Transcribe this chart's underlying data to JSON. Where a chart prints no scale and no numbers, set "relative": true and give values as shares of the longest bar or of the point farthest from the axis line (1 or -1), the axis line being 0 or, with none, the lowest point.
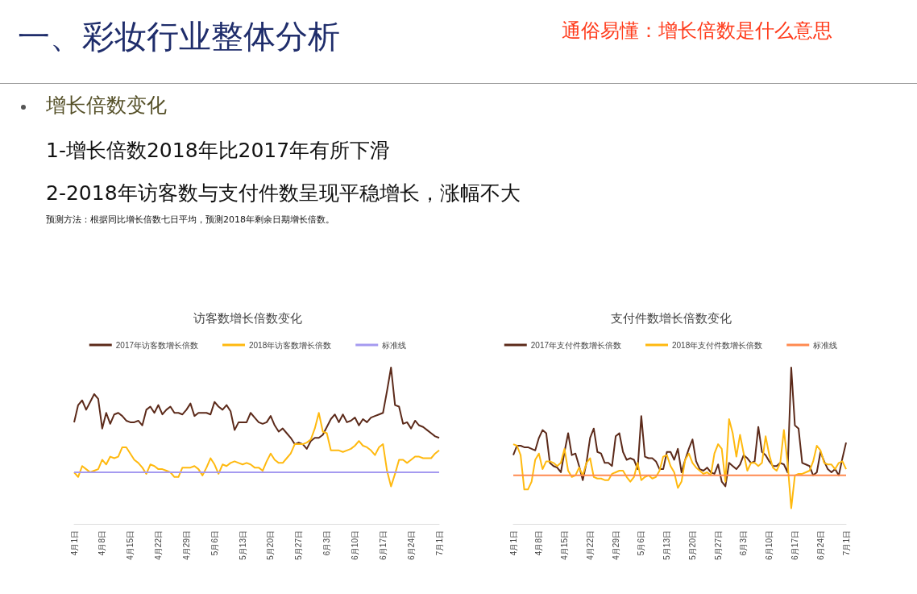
{
  "chart_data": [
    {
      "type": "other",
      "title": "一、彩妆行业整体分析",
      "annotations": [
        "通俗易懂：增长倍数是什么意思",
        "增长倍数变化",
        "1-增长倍数2018年比2017年有所下滑",
        "2-2018年访客数与支付件数呈现平稳增长，涨幅不大",
        "预测方法：根据同比增长倍数七日平均，预测2018年剩余日期增长倍数。"
      ]
    },
    {
      "type": "line",
      "title": "访客数增长倍数变化",
      "relative": true,
      "legend": "top",
      "marker": "none",
      "grid": false,
      "categories": [
        "4月1日",
        null,
        null,
        null,
        null,
        null,
        null,
        "4月8日",
        null,
        null,
        null,
        null,
        null,
        null,
        "4月15日",
        null,
        null,
        null,
        null,
        null,
        null,
        "4月22日",
        null,
        null,
        null,
        null,
        null,
        null,
        "4月29日",
        null,
        null,
        null,
        null,
        null,
        null,
        "5月6日",
        null,
        null,
        null,
        null,
        null,
        null,
        "5月13日",
        null,
        null,
        null,
        null,
        null,
        null,
        "5月20日",
        null,
        null,
        null,
        null,
        null,
        null,
        "5月27日",
        null,
        null,
        null,
        null,
        null,
        null,
        "6月3日",
        null,
        null,
        null,
        null,
        null,
        null,
        "6月10日",
        null,
        null,
        null,
        null,
        null,
        null,
        "6月17日",
        null,
        null,
        null,
        null,
        null,
        null,
        "6月24日",
        null,
        null,
        null,
        null,
        null,
        null,
        "7月1日"
      ],
      "series": [
        {
          "name": "2017年访客数增长倍数",
          "color": "#5c2a1a",
          "values": [
            0.65,
            0.76,
            0.79,
            0.73,
            0.78,
            0.83,
            0.8,
            0.61,
            0.71,
            0.64,
            0.7,
            0.71,
            0.69,
            0.66,
            0.65,
            0.65,
            0.66,
            0.63,
            0.73,
            0.75,
            0.71,
            0.76,
            0.7,
            0.73,
            0.75,
            0.71,
            0.71,
            0.7,
            0.73,
            0.77,
            0.69,
            0.71,
            0.71,
            0.71,
            0.7,
            0.78,
            0.75,
            0.73,
            0.76,
            0.72,
            0.6,
            0.65,
            0.65,
            0.65,
            0.71,
            0.68,
            0.65,
            0.64,
            0.65,
            0.69,
            0.63,
            0.59,
            0.61,
            0.58,
            0.55,
            0.51,
            0.52,
            0.51,
            0.48,
            0.53,
            0.55,
            0.55,
            0.57,
            0.62,
            0.67,
            0.7,
            0.65,
            0.7,
            0.65,
            0.66,
            0.68,
            0.63,
            0.67,
            0.65,
            0.68,
            0.69,
            0.7,
            0.71,
            0.85,
            1.0,
            0.76,
            0.75,
            0.64,
            0.65,
            0.61,
            0.66,
            0.63,
            0.62,
            0.6,
            0.58,
            0.56,
            0.55
          ]
        },
        {
          "name": "2018年访客数增长倍数",
          "color": "#ffb90f",
          "values": [
            0.33,
            0.3,
            0.37,
            0.35,
            0.33,
            0.34,
            0.35,
            0.41,
            0.38,
            0.43,
            0.42,
            0.43,
            0.49,
            0.49,
            0.45,
            0.41,
            0.39,
            0.36,
            0.32,
            0.38,
            0.37,
            0.35,
            0.35,
            0.34,
            0.33,
            0.3,
            0.3,
            0.36,
            0.36,
            0.36,
            0.37,
            0.35,
            0.31,
            0.36,
            0.42,
            0.38,
            0.32,
            0.38,
            0.37,
            0.39,
            0.4,
            0.39,
            0.38,
            0.39,
            0.38,
            0.36,
            0.36,
            0.34,
            0.4,
            0.45,
            0.41,
            0.39,
            0.39,
            0.42,
            0.45,
            0.51,
            0.51,
            0.51,
            0.52,
            0.54,
            0.61,
            0.71,
            0.59,
            0.58,
            0.47,
            0.47,
            0.47,
            0.46,
            0.47,
            0.48,
            0.5,
            0.53,
            0.5,
            0.49,
            0.47,
            0.44,
            0.49,
            0.51,
            0.34,
            0.24,
            0.32,
            0.41,
            0.41,
            0.39,
            0.41,
            0.43,
            0.43,
            0.42,
            0.42,
            0.42,
            0.45,
            0.47
          ]
        },
        {
          "name": "标准线",
          "color": "#a59af0",
          "values": [
            0.33,
            0.33,
            0.33,
            0.33,
            0.33,
            0.33,
            0.33,
            0.33,
            0.33,
            0.33,
            0.33,
            0.33,
            0.33,
            0.33,
            0.33,
            0.33,
            0.33,
            0.33,
            0.33,
            0.33,
            0.33,
            0.33,
            0.33,
            0.33,
            0.33,
            0.33,
            0.33,
            0.33,
            0.33,
            0.33,
            0.33,
            0.33,
            0.33,
            0.33,
            0.33,
            0.33,
            0.33,
            0.33,
            0.33,
            0.33,
            0.33,
            0.33,
            0.33,
            0.33,
            0.33,
            0.33,
            0.33,
            0.33,
            0.33,
            0.33,
            0.33,
            0.33,
            0.33,
            0.33,
            0.33,
            0.33,
            0.33,
            0.33,
            0.33,
            0.33,
            0.33,
            0.33,
            0.33,
            0.33,
            0.33,
            0.33,
            0.33,
            0.33,
            0.33,
            0.33,
            0.33,
            0.33,
            0.33,
            0.33,
            0.33,
            0.33,
            0.33,
            0.33,
            0.33,
            0.33,
            0.33,
            0.33,
            0.33,
            0.33,
            0.33,
            0.33,
            0.33,
            0.33,
            0.33,
            0.33,
            0.33,
            0.33
          ]
        }
      ]
    },
    {
      "type": "line",
      "title": "支付件数增长倍数变化",
      "relative": true,
      "legend": "top",
      "marker": "none",
      "grid": false,
      "categories": [
        "4月1日",
        null,
        null,
        null,
        null,
        null,
        null,
        "4月8日",
        null,
        null,
        null,
        null,
        null,
        null,
        "4月15日",
        null,
        null,
        null,
        null,
        null,
        null,
        "4月22日",
        null,
        null,
        null,
        null,
        null,
        null,
        "4月29日",
        null,
        null,
        null,
        null,
        null,
        null,
        "5月6日",
        null,
        null,
        null,
        null,
        null,
        null,
        "5月13日",
        null,
        null,
        null,
        null,
        null,
        null,
        "5月20日",
        null,
        null,
        null,
        null,
        null,
        null,
        "5月27日",
        null,
        null,
        null,
        null,
        null,
        null,
        "6月3日",
        null,
        null,
        null,
        null,
        null,
        null,
        "6月10日",
        null,
        null,
        null,
        null,
        null,
        null,
        "6月17日",
        null,
        null,
        null,
        null,
        null,
        null,
        "6月24日",
        null,
        null,
        null,
        null,
        null,
        null,
        "7月1日"
      ],
      "series": [
        {
          "name": "2017年支付件数增长倍数",
          "color": "#5c2a1a",
          "values": [
            0.44,
            0.5,
            0.5,
            0.49,
            0.49,
            0.48,
            0.47,
            0.55,
            0.6,
            0.58,
            0.39,
            0.37,
            0.36,
            0.33,
            0.46,
            0.58,
            0.44,
            0.45,
            0.37,
            0.28,
            0.39,
            0.55,
            0.61,
            0.46,
            0.45,
            0.39,
            0.39,
            0.37,
            0.56,
            0.58,
            0.46,
            0.41,
            0.42,
            0.41,
            0.35,
            0.69,
            0.43,
            0.42,
            0.42,
            0.4,
            0.35,
            0.35,
            0.46,
            0.46,
            0.41,
            0.48,
            0.33,
            0.41,
            0.48,
            0.54,
            0.4,
            0.35,
            0.34,
            0.36,
            0.33,
            0.32,
            0.38,
            0.27,
            0.24,
            0.39,
            0.37,
            0.35,
            0.38,
            0.44,
            0.42,
            0.39,
            0.4,
            0.62,
            0.46,
            0.44,
            0.4,
            0.37,
            0.37,
            0.39,
            0.38,
            0.33,
            1.0,
            0.63,
            0.61,
            0.39,
            0.38,
            0.37,
            0.31,
            0.33,
            0.46,
            0.4,
            0.35,
            0.33,
            0.35,
            0.31,
            0.42,
            0.52
          ]
        },
        {
          "name": "2018年支付件数增长倍数",
          "color": "#ffb90f",
          "values": [
            0.51,
            0.5,
            0.44,
            0.22,
            0.22,
            0.27,
            0.41,
            0.45,
            0.35,
            0.4,
            0.4,
            0.39,
            0.37,
            0.39,
            0.48,
            0.34,
            0.3,
            0.31,
            0.36,
            0.31,
            0.39,
            0.42,
            0.3,
            0.29,
            0.29,
            0.28,
            0.28,
            0.32,
            0.33,
            0.34,
            0.34,
            0.3,
            0.27,
            0.3,
            0.39,
            0.28,
            0.3,
            0.31,
            0.29,
            0.3,
            0.34,
            0.43,
            0.44,
            0.37,
            0.33,
            0.23,
            0.27,
            0.41,
            0.45,
            0.39,
            0.36,
            0.34,
            0.32,
            0.33,
            0.31,
            0.45,
            0.51,
            0.48,
            0.27,
            0.67,
            0.58,
            0.43,
            0.57,
            0.45,
            0.34,
            0.39,
            0.39,
            0.37,
            0.39,
            0.56,
            0.44,
            0.36,
            0.34,
            0.39,
            0.6,
            0.39,
            0.1,
            0.31,
            0.32,
            0.32,
            0.33,
            0.34,
            0.4,
            0.5,
            0.47,
            0.39,
            0.38,
            0.38,
            0.35,
            0.39,
            0.4,
            0.35
          ]
        },
        {
          "name": "标准线",
          "color": "#ff8a50",
          "values": [
            0.31,
            0.31,
            0.31,
            0.31,
            0.31,
            0.31,
            0.31,
            0.31,
            0.31,
            0.31,
            0.31,
            0.31,
            0.31,
            0.31,
            0.31,
            0.31,
            0.31,
            0.31,
            0.31,
            0.31,
            0.31,
            0.31,
            0.31,
            0.31,
            0.31,
            0.31,
            0.31,
            0.31,
            0.31,
            0.31,
            0.31,
            0.31,
            0.31,
            0.31,
            0.31,
            0.31,
            0.31,
            0.31,
            0.31,
            0.31,
            0.31,
            0.31,
            0.31,
            0.31,
            0.31,
            0.31,
            0.31,
            0.31,
            0.31,
            0.31,
            0.31,
            0.31,
            0.31,
            0.31,
            0.31,
            0.31,
            0.31,
            0.31,
            0.31,
            0.31,
            0.31,
            0.31,
            0.31,
            0.31,
            0.31,
            0.31,
            0.31,
            0.31,
            0.31,
            0.31,
            0.31,
            0.31,
            0.31,
            0.31,
            0.31,
            0.31,
            0.31,
            0.31,
            0.31,
            0.31,
            0.31,
            0.31,
            0.31,
            0.31,
            0.31,
            0.31,
            0.31,
            0.31,
            0.31,
            0.31,
            0.31,
            0.31
          ]
        }
      ]
    }
  ]
}
